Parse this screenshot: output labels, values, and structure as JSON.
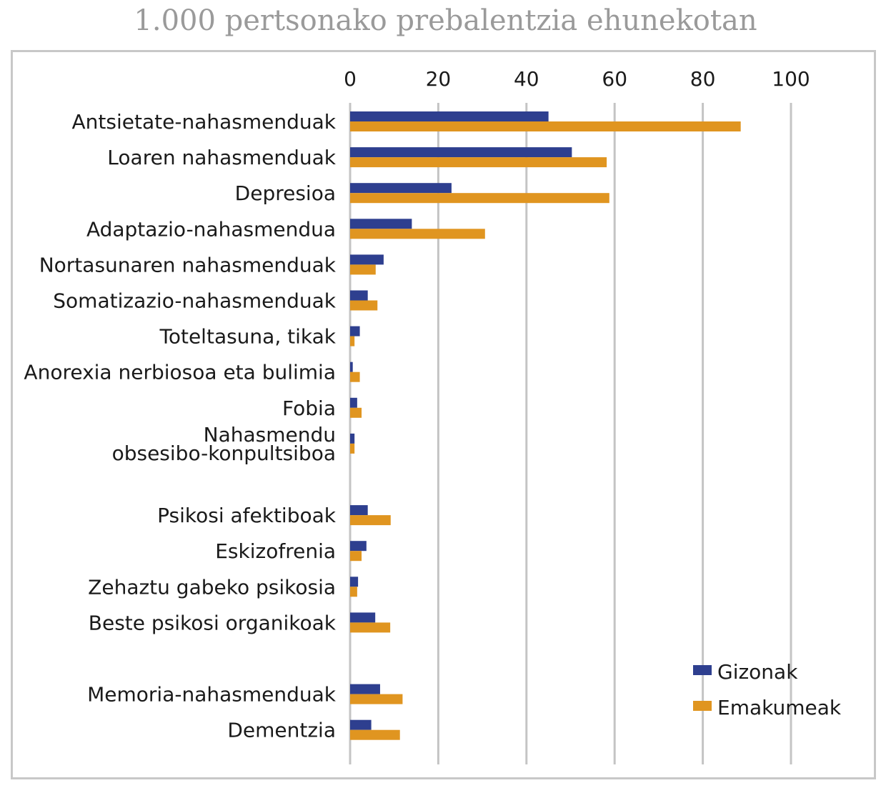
{
  "title": "1.000 pertsonako prebalentzia ehunekotan",
  "colors": {
    "men": "#2e3f8f",
    "women": "#e09520",
    "grid": "#c4c4c4",
    "frame": "#c8c8c8"
  },
  "chart_data": {
    "type": "bar",
    "orientation": "horizontal",
    "title": "1.000 pertsonako prebalentzia ehunekotan",
    "xlabel": "",
    "ylabel": "",
    "xlim": [
      0,
      100
    ],
    "xticks": [
      0,
      20,
      40,
      60,
      80,
      100
    ],
    "grid": true,
    "legend_position": "bottom-right",
    "categories": [
      [
        "Antsietate-nahasmenduak"
      ],
      [
        "Loaren nahasmenduak"
      ],
      [
        "Depresioa"
      ],
      [
        "Adaptazio-nahasmendua"
      ],
      [
        "Nortasunaren nahasmenduak"
      ],
      [
        "Somatizazio-nahasmenduak"
      ],
      [
        "Toteltasuna, tikak"
      ],
      [
        "Anorexia nerbiosoa eta bulimia"
      ],
      [
        "Fobia"
      ],
      [
        "Nahasmendu",
        "obsesibo-konpultsiboa"
      ],
      [
        ""
      ],
      [
        "Psikosi afektiboak"
      ],
      [
        "Eskizofrenia"
      ],
      [
        "Zehaztu gabeko psikosia"
      ],
      [
        "Beste psikosi organikoak"
      ],
      [
        ""
      ],
      [
        "Memoria-nahasmenduak"
      ],
      [
        "Dementzia"
      ]
    ],
    "series": [
      {
        "name": "Gizonak",
        "values": [
          45,
          50.3,
          23,
          14,
          7.6,
          4,
          2.2,
          0.6,
          1.6,
          1,
          null,
          4,
          3.7,
          1.8,
          5.7,
          null,
          6.8,
          4.8
        ]
      },
      {
        "name": "Emakumeak",
        "values": [
          88.6,
          58.2,
          58.8,
          30.6,
          5.8,
          6.2,
          1,
          2.2,
          2.6,
          1,
          null,
          9.2,
          2.6,
          1.6,
          9.1,
          null,
          11.9,
          11.3
        ]
      }
    ]
  }
}
